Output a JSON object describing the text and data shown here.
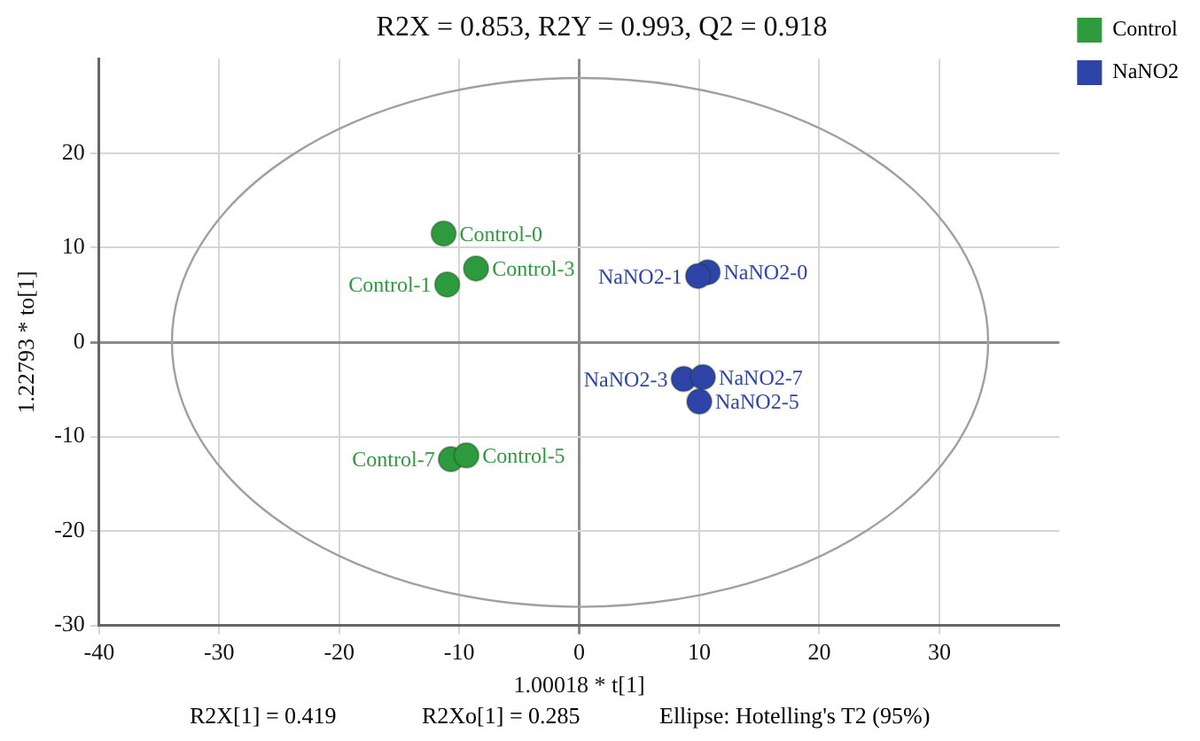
{
  "chart_data": {
    "type": "scatter",
    "title": "R2X = 0.853, R2Y = 0.993, Q2 = 0.918",
    "xlabel": "1.00018 * t[1]",
    "ylabel": "1.22793 * to[1]",
    "xlim": [
      -40,
      40
    ],
    "ylim": [
      -30,
      30
    ],
    "xticks": [
      -40,
      -30,
      -20,
      -10,
      0,
      10,
      20,
      30
    ],
    "yticks": [
      -30,
      -20,
      -10,
      0,
      10,
      20
    ],
    "grid": true,
    "legend": "top right",
    "marker": "circle",
    "annotations": [
      "R2X[1] = 0.419",
      "R2Xo[1] = 0.285",
      "Ellipse: Hotelling's T2 (95%)"
    ],
    "series": [
      {
        "name": "Control",
        "color": "#2e9a3e",
        "x": [
          -11.3,
          -8.6,
          -11,
          -10.7,
          -9.4
        ],
        "values": [
          11.5,
          7.8,
          6.1,
          -12.4,
          -12
        ],
        "value_labels": [
          "Control-0",
          "Control-3",
          "Control-1",
          "Control-7",
          "Control-5"
        ]
      },
      {
        "name": "NaNO2",
        "color": "#2e44a8",
        "x": [
          10.7,
          9.9,
          8.7,
          10.3,
          10
        ],
        "values": [
          7.4,
          7,
          -3.9,
          -3.7,
          -6.3
        ],
        "value_labels": [
          "NaNO2-0",
          "NaNO2-1",
          "NaNO2-3",
          "NaNO2-7",
          "NaNO2-5"
        ]
      }
    ]
  }
}
